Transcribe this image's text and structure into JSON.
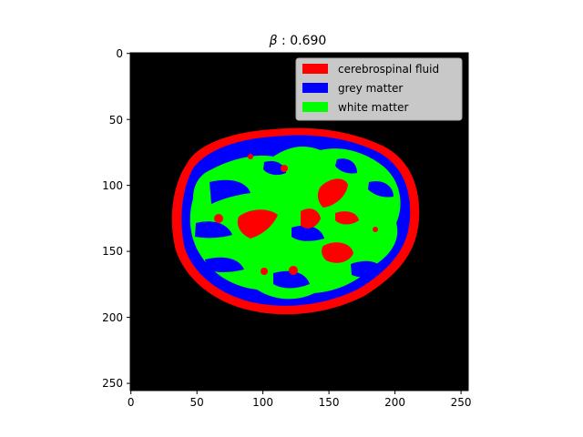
{
  "title": "β : 0.690",
  "title_parts": {
    "symbol": "β",
    "rest": " : 0.690"
  },
  "axes": {
    "x_ticks": [
      "0",
      "50",
      "100",
      "150",
      "200",
      "250"
    ],
    "y_ticks": [
      "0",
      "50",
      "100",
      "150",
      "200",
      "250"
    ],
    "xlim": [
      0,
      256
    ],
    "ylim": [
      256,
      0
    ]
  },
  "legend": {
    "placement": "top-right",
    "items": [
      {
        "label": "cerebrospinal fluid",
        "color": "#ff0000"
      },
      {
        "label": "grey matter",
        "color": "#0000ff"
      },
      {
        "label": "white matter",
        "color": "#00ff00"
      }
    ]
  },
  "colors": {
    "background": "#000000",
    "csf": "#ff0000",
    "grey_matter": "#0000ff",
    "white_matter": "#00ff00",
    "legend_bg": "#c8c8c8"
  }
}
